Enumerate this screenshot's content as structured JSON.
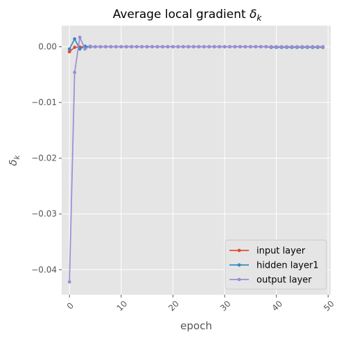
{
  "chart_data": {
    "type": "line",
    "title": "Average local gradient",
    "title_symbol": "δ",
    "title_symbol_sub": "k",
    "xlabel": "epoch",
    "ylabel": "δ",
    "ylabel_sub": "k",
    "xlim": [
      -1.5,
      50.5
    ],
    "ylim": [
      -0.0445,
      0.0038
    ],
    "grid": true,
    "legend_position": "lower right",
    "x_ticks": [
      0,
      10,
      20,
      30,
      40,
      50
    ],
    "x_tick_labels": [
      "0",
      "10",
      "20",
      "30",
      "40",
      "50"
    ],
    "y_ticks": [
      0.0,
      -0.01,
      -0.02,
      -0.03,
      -0.04
    ],
    "y_tick_labels": [
      "0.00",
      "−0.01",
      "−0.02",
      "−0.03",
      "−0.04"
    ],
    "series": [
      {
        "name": "input layer",
        "color": "#E24A33",
        "x": [
          0,
          1,
          2,
          3,
          4,
          5,
          6,
          7,
          8,
          9,
          10,
          11,
          12,
          13,
          14,
          15,
          16,
          17,
          18,
          19,
          20,
          21,
          22,
          23,
          24,
          25,
          26,
          27,
          28,
          29,
          30,
          31,
          32,
          33,
          34,
          35,
          36,
          37,
          38,
          39,
          40,
          41,
          42,
          43,
          44,
          45,
          46,
          47,
          48,
          49
        ],
        "y": [
          -0.0009,
          -0.0001,
          -5e-05,
          0,
          0,
          0,
          0,
          0,
          0,
          0,
          0,
          0,
          0,
          0,
          0,
          0,
          0,
          0,
          0,
          0,
          0,
          0,
          0,
          0,
          0,
          0,
          0,
          0,
          0,
          0,
          0,
          0,
          0,
          0,
          0,
          0,
          0,
          0,
          0,
          0,
          0,
          0,
          0,
          0,
          0,
          0,
          0,
          0,
          0,
          0
        ]
      },
      {
        "name": "hidden layer1",
        "color": "#348ABD",
        "x": [
          0,
          1,
          2,
          3,
          4,
          5,
          6,
          7,
          8,
          9,
          10,
          11,
          12,
          13,
          14,
          15,
          16,
          17,
          18,
          19,
          20,
          21,
          22,
          23,
          24,
          25,
          26,
          27,
          28,
          29,
          30,
          31,
          32,
          33,
          34,
          35,
          36,
          37,
          38,
          39,
          40,
          41,
          42,
          43,
          44,
          45,
          46,
          47,
          48,
          49
        ],
        "y": [
          -0.0004,
          0.0014,
          -0.0004,
          0.0001,
          0,
          0,
          0,
          0,
          0,
          0,
          0,
          0,
          0,
          0,
          0,
          0,
          0,
          0,
          0,
          0,
          0,
          0,
          0,
          0,
          0,
          0,
          0,
          0,
          0,
          0,
          0,
          0,
          0,
          0,
          0,
          0,
          0,
          0,
          0,
          -0.0001,
          -0.0001,
          -0.0001,
          -0.0001,
          -0.0001,
          -0.0001,
          -0.0001,
          -0.0001,
          -0.0001,
          -0.0001,
          -0.0001
        ]
      },
      {
        "name": "output layer",
        "color": "#988ED5",
        "x": [
          0,
          1,
          2,
          3,
          4,
          5,
          6,
          7,
          8,
          9,
          10,
          11,
          12,
          13,
          14,
          15,
          16,
          17,
          18,
          19,
          20,
          21,
          22,
          23,
          24,
          25,
          26,
          27,
          28,
          29,
          30,
          31,
          32,
          33,
          34,
          35,
          36,
          37,
          38,
          39,
          40,
          41,
          42,
          43,
          44,
          45,
          46,
          47,
          48,
          49
        ],
        "y": [
          -0.0422,
          -0.0046,
          0.0017,
          -0.0004,
          0.0001,
          0,
          0,
          0,
          0,
          0,
          0,
          0,
          0,
          0,
          0,
          0,
          0,
          0,
          0,
          0,
          0,
          0,
          0,
          0,
          0,
          0,
          0,
          0,
          0,
          0,
          0,
          0,
          0,
          0,
          0,
          0,
          0,
          0,
          0,
          0,
          0,
          0,
          0,
          0,
          0,
          0,
          0,
          0,
          0,
          0
        ]
      }
    ]
  },
  "colors": {
    "plot_background": "#E5E5E5",
    "grid": "#FFFFFF",
    "axis_text": "#555555"
  }
}
